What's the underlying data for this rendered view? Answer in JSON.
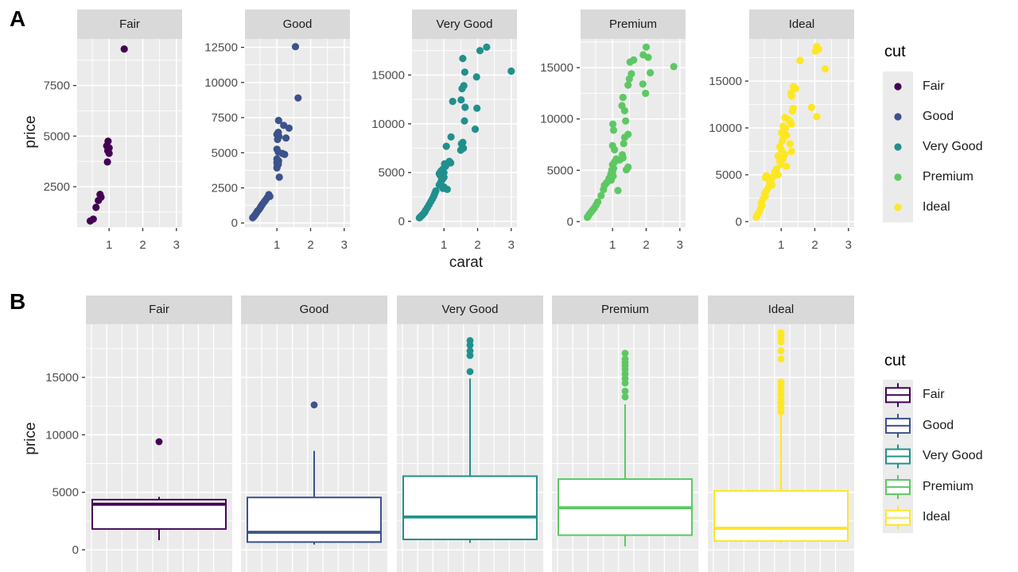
{
  "figure": {
    "panel_a_tag": "A",
    "panel_b_tag": "B"
  },
  "colors": {
    "panel_bg": "#EBEBEB",
    "strip_bg": "#D9D9D9",
    "grid": "#FFFFFF",
    "tick_text": "#4D4D4D",
    "axis_tick": "#333333",
    "legend_key_bg": "#EBEBEB",
    "fair": "#440154",
    "good": "#3B528B",
    "very_good": "#21908C",
    "premium": "#5DC863",
    "ideal": "#FDE725"
  },
  "chart_data": [
    {
      "id": "A",
      "type": "scatter",
      "xlabel": "carat",
      "ylabel": "price",
      "facet_by": "cut",
      "grid": true,
      "x_ticks": [
        1,
        2,
        3
      ],
      "xlim": [
        0.05,
        3.17
      ],
      "legend": {
        "title": "cut",
        "position": "right",
        "items": [
          "Fair",
          "Good",
          "Very Good",
          "Premium",
          "Ideal"
        ]
      },
      "facets": [
        {
          "name": "Fair",
          "color": "#440154",
          "y_ticks": [
            2500,
            5000,
            7500
          ],
          "ylim": [
            500,
            9800
          ],
          "points": [
            [
              1.45,
              9300
            ],
            [
              0.97,
              4750
            ],
            [
              0.93,
              4520
            ],
            [
              1.0,
              4420
            ],
            [
              0.96,
              4280
            ],
            [
              1.0,
              4150
            ],
            [
              0.95,
              3720
            ],
            [
              0.73,
              2120
            ],
            [
              0.76,
              1980
            ],
            [
              0.68,
              1820
            ],
            [
              0.61,
              1480
            ],
            [
              0.53,
              900
            ],
            [
              0.44,
              810
            ]
          ]
        },
        {
          "name": "Good",
          "color": "#3B528B",
          "y_ticks": [
            0,
            2500,
            5000,
            7500,
            10000,
            12500
          ],
          "ylim": [
            -300,
            13100
          ],
          "points": [
            [
              1.55,
              12550
            ],
            [
              1.63,
              8900
            ],
            [
              1.05,
              7300
            ],
            [
              1.2,
              6950
            ],
            [
              1.36,
              6750
            ],
            [
              1.04,
              6450
            ],
            [
              1.0,
              6300
            ],
            [
              1.06,
              6150
            ],
            [
              1.27,
              6050
            ],
            [
              1.02,
              5950
            ],
            [
              1.0,
              5250
            ],
            [
              1.04,
              5050
            ],
            [
              1.16,
              4950
            ],
            [
              1.23,
              4880
            ],
            [
              1.0,
              4560
            ],
            [
              1.05,
              4420
            ],
            [
              1.0,
              4300
            ],
            [
              1.04,
              4180
            ],
            [
              1.01,
              4050
            ],
            [
              1.0,
              3920
            ],
            [
              1.07,
              3260
            ],
            [
              0.76,
              2020
            ],
            [
              0.79,
              1890
            ],
            [
              0.71,
              1790
            ],
            [
              0.66,
              1620
            ],
            [
              0.62,
              1500
            ],
            [
              0.57,
              1340
            ],
            [
              0.53,
              1190
            ],
            [
              0.5,
              1060
            ],
            [
              0.46,
              930
            ],
            [
              0.42,
              840
            ],
            [
              0.4,
              740
            ],
            [
              0.37,
              640
            ],
            [
              0.34,
              540
            ],
            [
              0.31,
              450
            ],
            [
              0.28,
              380
            ]
          ]
        },
        {
          "name": "Very Good",
          "color": "#21908C",
          "y_ticks": [
            0,
            5000,
            10000,
            15000
          ],
          "ylim": [
            -600,
            18700
          ],
          "points": [
            [
              2.27,
              17850
            ],
            [
              2.07,
              17500
            ],
            [
              1.56,
              16700
            ],
            [
              3.0,
              15400
            ],
            [
              1.62,
              15300
            ],
            [
              1.97,
              14800
            ],
            [
              1.59,
              13900
            ],
            [
              1.54,
              13600
            ],
            [
              1.51,
              12450
            ],
            [
              1.26,
              12300
            ],
            [
              1.63,
              11700
            ],
            [
              1.98,
              11600
            ],
            [
              1.61,
              10300
            ],
            [
              1.93,
              9450
            ],
            [
              1.21,
              8650
            ],
            [
              1.56,
              8100
            ],
            [
              1.52,
              7950
            ],
            [
              1.58,
              7500
            ],
            [
              1.5,
              7300
            ],
            [
              1.07,
              7700
            ],
            [
              1.16,
              6150
            ],
            [
              1.2,
              6000
            ],
            [
              1.02,
              5900
            ],
            [
              1.05,
              5650
            ],
            [
              0.97,
              5350
            ],
            [
              0.91,
              5150
            ],
            [
              1.0,
              5000
            ],
            [
              0.86,
              4900
            ],
            [
              0.89,
              4720
            ],
            [
              1.0,
              4520
            ],
            [
              0.96,
              4330
            ],
            [
              0.92,
              4130
            ],
            [
              0.9,
              3940
            ],
            [
              0.86,
              3740
            ],
            [
              1.0,
              3520
            ],
            [
              0.97,
              3380
            ],
            [
              1.1,
              3280
            ],
            [
              0.76,
              3120
            ],
            [
              0.73,
              2880
            ],
            [
              0.7,
              2620
            ],
            [
              0.66,
              2320
            ],
            [
              0.61,
              2020
            ],
            [
              0.56,
              1720
            ],
            [
              0.51,
              1430
            ],
            [
              0.46,
              1140
            ],
            [
              0.43,
              950
            ],
            [
              0.4,
              820
            ],
            [
              0.36,
              660
            ],
            [
              0.33,
              560
            ],
            [
              0.3,
              460
            ],
            [
              0.27,
              360
            ]
          ]
        },
        {
          "name": "Premium",
          "color": "#5DC863",
          "y_ticks": [
            0,
            5000,
            10000,
            15000
          ],
          "ylim": [
            -550,
            17800
          ],
          "points": [
            [
              2.0,
              17000
            ],
            [
              1.91,
              16250
            ],
            [
              2.06,
              16000
            ],
            [
              1.63,
              15750
            ],
            [
              1.52,
              15550
            ],
            [
              2.82,
              15100
            ],
            [
              2.12,
              14500
            ],
            [
              1.56,
              14400
            ],
            [
              1.5,
              13900
            ],
            [
              1.9,
              13400
            ],
            [
              1.46,
              13300
            ],
            [
              1.98,
              12500
            ],
            [
              1.31,
              12100
            ],
            [
              1.28,
              11300
            ],
            [
              1.36,
              10800
            ],
            [
              1.39,
              9800
            ],
            [
              1.01,
              9500
            ],
            [
              1.03,
              8900
            ],
            [
              1.46,
              8500
            ],
            [
              1.36,
              8200
            ],
            [
              1.33,
              7600
            ],
            [
              1.0,
              7400
            ],
            [
              1.06,
              7000
            ],
            [
              1.29,
              6500
            ],
            [
              1.31,
              6200
            ],
            [
              1.11,
              6100
            ],
            [
              1.21,
              6000
            ],
            [
              1.06,
              5800
            ],
            [
              1.0,
              5550
            ],
            [
              1.46,
              5300
            ],
            [
              1.41,
              5050
            ],
            [
              1.03,
              5200
            ],
            [
              0.98,
              5020
            ],
            [
              1.0,
              4820
            ],
            [
              0.95,
              4620
            ],
            [
              1.02,
              4420
            ],
            [
              0.9,
              4230
            ],
            [
              0.96,
              4040
            ],
            [
              0.86,
              3920
            ],
            [
              0.81,
              3730
            ],
            [
              0.76,
              3530
            ],
            [
              1.16,
              3020
            ],
            [
              0.73,
              3120
            ],
            [
              0.66,
              2520
            ],
            [
              0.56,
              1920
            ],
            [
              0.51,
              1620
            ],
            [
              0.46,
              1320
            ],
            [
              0.41,
              1120
            ],
            [
              0.36,
              920
            ],
            [
              0.31,
              720
            ],
            [
              0.28,
              540
            ],
            [
              0.25,
              420
            ]
          ]
        },
        {
          "name": "Ideal",
          "color": "#FDE725",
          "y_ticks": [
            0,
            5000,
            10000,
            15000
          ],
          "ylim": [
            -600,
            19500
          ],
          "points": [
            [
              2.06,
              18700
            ],
            [
              2.11,
              18400
            ],
            [
              2.02,
              18200
            ],
            [
              1.56,
              17200
            ],
            [
              2.31,
              16300
            ],
            [
              1.36,
              14400
            ],
            [
              1.43,
              14200
            ],
            [
              1.29,
              13700
            ],
            [
              1.31,
              13400
            ],
            [
              1.9,
              12200
            ],
            [
              1.36,
              12100
            ],
            [
              1.33,
              11800
            ],
            [
              2.06,
              11200
            ],
            [
              1.11,
              11100
            ],
            [
              1.21,
              10900
            ],
            [
              1.26,
              10700
            ],
            [
              1.31,
              10400
            ],
            [
              1.06,
              10200
            ],
            [
              1.13,
              10000
            ],
            [
              1.09,
              9700
            ],
            [
              1.01,
              9500
            ],
            [
              1.16,
              9200
            ],
            [
              1.06,
              8900
            ],
            [
              1.03,
              8600
            ],
            [
              1.26,
              8300
            ],
            [
              0.96,
              8000
            ],
            [
              1.0,
              7700
            ],
            [
              1.31,
              7500
            ],
            [
              1.11,
              7200
            ],
            [
              0.91,
              7000
            ],
            [
              1.06,
              6700
            ],
            [
              0.96,
              6400
            ],
            [
              1.0,
              6100
            ],
            [
              1.16,
              5900
            ],
            [
              0.86,
              5600
            ],
            [
              0.81,
              5300
            ],
            [
              0.91,
              5000
            ],
            [
              0.76,
              4800
            ],
            [
              0.71,
              4500
            ],
            [
              0.56,
              4900
            ],
            [
              0.53,
              4700
            ],
            [
              0.66,
              4200
            ],
            [
              0.73,
              3900
            ],
            [
              0.61,
              3600
            ],
            [
              0.56,
              3300
            ],
            [
              0.51,
              3000
            ],
            [
              0.53,
              2700
            ],
            [
              0.46,
              2400
            ],
            [
              0.41,
              2000
            ],
            [
              0.43,
              1700
            ],
            [
              0.39,
              1400
            ],
            [
              0.36,
              1100
            ],
            [
              0.31,
              820
            ],
            [
              0.28,
              620
            ],
            [
              0.26,
              460
            ]
          ]
        }
      ]
    },
    {
      "id": "B",
      "type": "box",
      "ylabel": "price",
      "facet_by": "cut",
      "grid": true,
      "y_ticks": [
        0,
        5000,
        10000,
        15000
      ],
      "ylim": [
        -1900,
        19650
      ],
      "legend": {
        "title": "cut",
        "position": "right",
        "items": [
          "Fair",
          "Good",
          "Very Good",
          "Premium",
          "Ideal"
        ]
      },
      "facets": [
        {
          "name": "Fair",
          "color": "#440154",
          "stats": {
            "whisker_low": 830,
            "q1": 1810,
            "median": 3960,
            "q3": 4360,
            "whisker_high": 4600,
            "outliers": [
              9400
            ]
          }
        },
        {
          "name": "Good",
          "color": "#3B528B",
          "stats": {
            "whisker_low": 450,
            "q1": 670,
            "median": 1520,
            "q3": 4550,
            "whisker_high": 8600,
            "outliers": [
              12600
            ]
          }
        },
        {
          "name": "Very Good",
          "color": "#21908C",
          "stats": {
            "whisker_low": 600,
            "q1": 900,
            "median": 2850,
            "q3": 6400,
            "whisker_high": 14900,
            "outliers": [
              18200,
              17800,
              17300,
              16900,
              15500
            ]
          }
        },
        {
          "name": "Premium",
          "color": "#5DC863",
          "stats": {
            "whisker_low": 300,
            "q1": 1270,
            "median": 3650,
            "q3": 6150,
            "whisker_high": 12650,
            "outliers": [
              17100,
              16600,
              16300,
              16000,
              15700,
              15300,
              14900,
              14500,
              13800,
              13300
            ]
          }
        },
        {
          "name": "Ideal",
          "color": "#FDE725",
          "stats": {
            "whisker_low": 600,
            "q1": 760,
            "median": 1870,
            "q3": 5120,
            "whisker_high": 11700,
            "outliers": [
              18900,
              18700,
              18400,
              18100,
              17300,
              16600,
              14600,
              14300,
              13900,
              13500,
              13100,
              12800,
              12400,
              12000
            ]
          }
        }
      ]
    }
  ]
}
